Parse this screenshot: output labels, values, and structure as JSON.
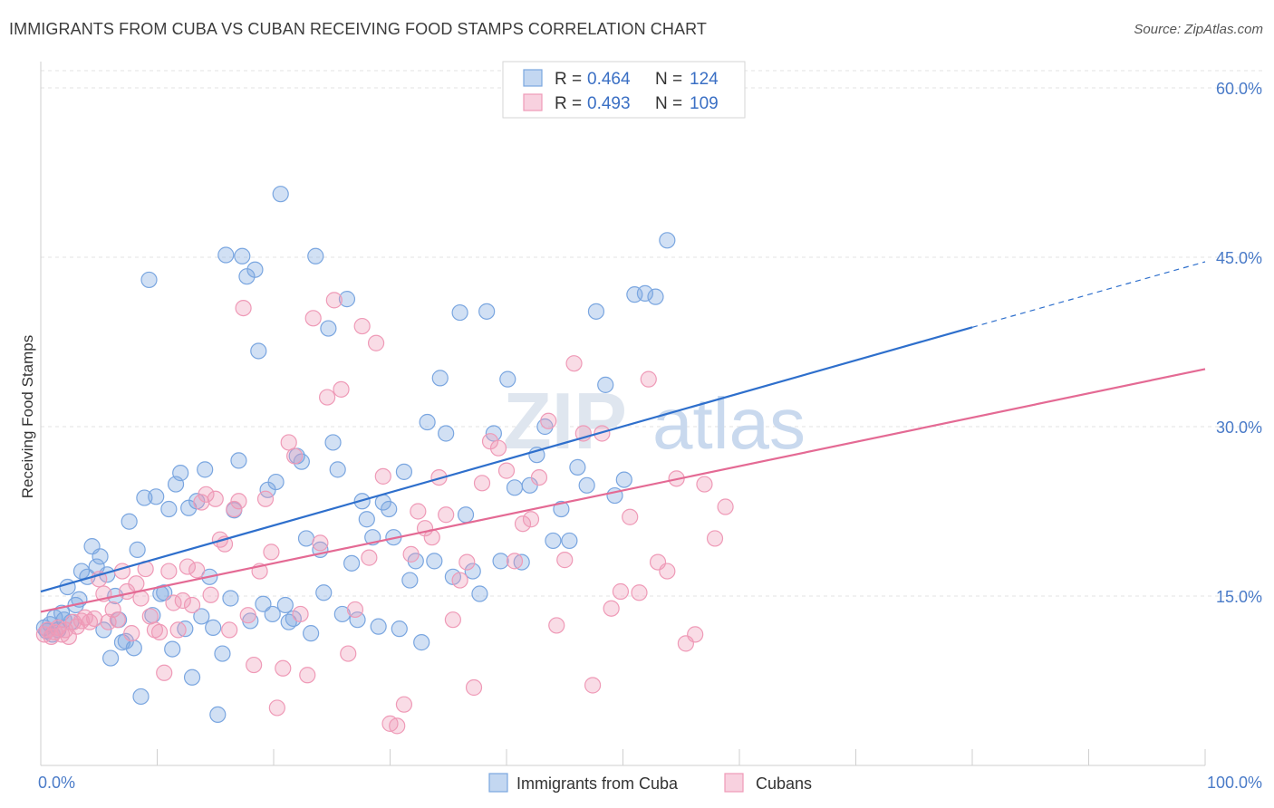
{
  "header": {
    "title": "IMMIGRANTS FROM CUBA VS CUBAN RECEIVING FOOD STAMPS CORRELATION CHART",
    "source_label": "Source:",
    "source_value": "ZipAtlas.com"
  },
  "watermark": {
    "zip": "ZIP",
    "atlas": "atlas"
  },
  "legend": {
    "r_label": "R =",
    "n_label": "N =",
    "entries": [
      {
        "r": "0.464",
        "n": "124",
        "color": "#7aa6e0"
      },
      {
        "r": "0.493",
        "n": "109",
        "color": "#ef9ab7"
      }
    ]
  },
  "chart_data": {
    "type": "scatter",
    "title": "IMMIGRANTS FROM CUBA VS CUBAN RECEIVING FOOD STAMPS CORRELATION CHART",
    "xlabel": "",
    "ylabel": "Receiving Food Stamps",
    "xlim": [
      0,
      100
    ],
    "ylim": [
      0,
      60
    ],
    "x_tick_labels": [
      "0.0%",
      "100.0%"
    ],
    "y_ticks": [
      15,
      30,
      45,
      60
    ],
    "y_tick_labels": [
      "15.0%",
      "30.0%",
      "45.0%",
      "60.0%"
    ],
    "grid": true,
    "legend_position": "top-center",
    "series": [
      {
        "name": "Immigrants from Cuba",
        "color": "#7aa6e0",
        "line_color": "#2e6fcc",
        "trend": {
          "x0": 0,
          "y0": 15.4,
          "x1": 80,
          "y1": 38.8,
          "dash_to_x": 100,
          "dash_to_y": 44.6
        },
        "points": [
          [
            0.3,
            12.2
          ],
          [
            0.5,
            11.9
          ],
          [
            0.8,
            12.5
          ],
          [
            1.0,
            11.6
          ],
          [
            1.2,
            13.1
          ],
          [
            1.5,
            12.0
          ],
          [
            1.8,
            13.5
          ],
          [
            2.0,
            12.9
          ],
          [
            2.3,
            15.8
          ],
          [
            2.6,
            12.7
          ],
          [
            3.0,
            14.2
          ],
          [
            3.3,
            14.7
          ],
          [
            3.5,
            17.2
          ],
          [
            4.0,
            16.7
          ],
          [
            4.4,
            19.4
          ],
          [
            4.8,
            17.6
          ],
          [
            5.1,
            18.5
          ],
          [
            5.4,
            12.0
          ],
          [
            5.7,
            16.9
          ],
          [
            6.0,
            9.5
          ],
          [
            6.4,
            15.0
          ],
          [
            6.7,
            12.9
          ],
          [
            7.0,
            10.9
          ],
          [
            7.3,
            11.0
          ],
          [
            7.6,
            21.6
          ],
          [
            8.0,
            10.4
          ],
          [
            8.3,
            19.1
          ],
          [
            8.6,
            6.1
          ],
          [
            8.9,
            23.7
          ],
          [
            9.3,
            43.0
          ],
          [
            9.6,
            13.3
          ],
          [
            9.9,
            23.8
          ],
          [
            10.3,
            15.2
          ],
          [
            10.6,
            15.3
          ],
          [
            11.0,
            22.7
          ],
          [
            11.3,
            10.3
          ],
          [
            11.6,
            24.9
          ],
          [
            12.0,
            25.9
          ],
          [
            12.4,
            12.1
          ],
          [
            12.7,
            22.8
          ],
          [
            13.0,
            7.8
          ],
          [
            13.4,
            23.4
          ],
          [
            13.8,
            13.2
          ],
          [
            14.1,
            26.2
          ],
          [
            14.5,
            16.7
          ],
          [
            14.8,
            12.2
          ],
          [
            15.2,
            4.5
          ],
          [
            15.6,
            9.9
          ],
          [
            15.9,
            45.2
          ],
          [
            16.3,
            14.8
          ],
          [
            16.6,
            22.6
          ],
          [
            17.0,
            27.0
          ],
          [
            17.3,
            45.1
          ],
          [
            17.7,
            43.3
          ],
          [
            18.0,
            12.8
          ],
          [
            18.4,
            43.9
          ],
          [
            18.7,
            36.7
          ],
          [
            19.1,
            14.3
          ],
          [
            19.5,
            24.4
          ],
          [
            19.9,
            13.4
          ],
          [
            20.2,
            25.1
          ],
          [
            20.6,
            50.6
          ],
          [
            21.0,
            14.2
          ],
          [
            21.3,
            12.7
          ],
          [
            21.7,
            13.0
          ],
          [
            22.0,
            27.4
          ],
          [
            22.4,
            26.9
          ],
          [
            22.8,
            20.1
          ],
          [
            23.2,
            11.7
          ],
          [
            23.6,
            45.1
          ],
          [
            24.0,
            19.1
          ],
          [
            24.3,
            15.3
          ],
          [
            24.7,
            38.7
          ],
          [
            25.1,
            28.6
          ],
          [
            25.5,
            26.2
          ],
          [
            25.9,
            13.4
          ],
          [
            26.3,
            41.3
          ],
          [
            26.7,
            17.9
          ],
          [
            27.2,
            12.9
          ],
          [
            27.6,
            23.4
          ],
          [
            28.0,
            21.8
          ],
          [
            28.5,
            20.2
          ],
          [
            29.0,
            12.3
          ],
          [
            29.4,
            23.3
          ],
          [
            29.9,
            22.7
          ],
          [
            30.3,
            20.2
          ],
          [
            30.8,
            12.1
          ],
          [
            31.2,
            26.0
          ],
          [
            31.7,
            16.4
          ],
          [
            32.2,
            18.1
          ],
          [
            32.7,
            10.9
          ],
          [
            33.2,
            30.4
          ],
          [
            33.8,
            18.1
          ],
          [
            34.3,
            34.3
          ],
          [
            34.8,
            29.4
          ],
          [
            35.4,
            16.7
          ],
          [
            36.0,
            40.1
          ],
          [
            36.5,
            22.2
          ],
          [
            37.1,
            17.2
          ],
          [
            37.7,
            15.2
          ],
          [
            38.3,
            40.2
          ],
          [
            38.9,
            29.4
          ],
          [
            39.5,
            18.1
          ],
          [
            40.1,
            34.2
          ],
          [
            40.7,
            24.6
          ],
          [
            41.3,
            18.0
          ],
          [
            42.0,
            24.8
          ],
          [
            42.6,
            27.5
          ],
          [
            43.3,
            30.0
          ],
          [
            44.0,
            19.9
          ],
          [
            44.7,
            22.7
          ],
          [
            45.4,
            19.9
          ],
          [
            46.1,
            26.4
          ],
          [
            46.9,
            24.8
          ],
          [
            47.7,
            40.2
          ],
          [
            48.5,
            33.7
          ],
          [
            49.3,
            23.9
          ],
          [
            50.1,
            25.3
          ],
          [
            51.0,
            41.7
          ],
          [
            51.9,
            41.8
          ],
          [
            52.8,
            41.5
          ],
          [
            53.8,
            46.5
          ]
        ]
      },
      {
        "name": "Cubans",
        "color": "#ef9ab7",
        "line_color": "#e46a94",
        "trend": {
          "x0": 0,
          "y0": 13.6,
          "x1": 100,
          "y1": 35.1
        },
        "points": [
          [
            0.3,
            11.6
          ],
          [
            0.6,
            12.0
          ],
          [
            0.9,
            11.4
          ],
          [
            1.2,
            11.8
          ],
          [
            1.5,
            12.2
          ],
          [
            1.8,
            11.6
          ],
          [
            2.1,
            12.0
          ],
          [
            2.4,
            11.4
          ],
          [
            2.8,
            12.7
          ],
          [
            3.1,
            12.3
          ],
          [
            3.5,
            12.8
          ],
          [
            3.8,
            13.1
          ],
          [
            4.2,
            12.7
          ],
          [
            4.6,
            13.0
          ],
          [
            5.0,
            16.5
          ],
          [
            5.4,
            15.2
          ],
          [
            5.8,
            12.7
          ],
          [
            6.2,
            13.8
          ],
          [
            6.6,
            12.9
          ],
          [
            7.0,
            17.2
          ],
          [
            7.4,
            15.4
          ],
          [
            7.8,
            11.7
          ],
          [
            8.2,
            16.1
          ],
          [
            8.6,
            14.8
          ],
          [
            9.0,
            17.4
          ],
          [
            9.4,
            13.2
          ],
          [
            9.8,
            12.0
          ],
          [
            10.2,
            11.8
          ],
          [
            10.6,
            8.2
          ],
          [
            11.0,
            17.2
          ],
          [
            11.4,
            14.4
          ],
          [
            11.8,
            12.0
          ],
          [
            12.2,
            14.6
          ],
          [
            12.6,
            17.6
          ],
          [
            13.0,
            14.2
          ],
          [
            13.4,
            17.3
          ],
          [
            13.8,
            23.3
          ],
          [
            14.2,
            24.0
          ],
          [
            14.6,
            15.1
          ],
          [
            15.0,
            23.6
          ],
          [
            15.4,
            20.0
          ],
          [
            15.8,
            19.6
          ],
          [
            16.2,
            12.0
          ],
          [
            16.6,
            22.7
          ],
          [
            17.0,
            23.4
          ],
          [
            17.4,
            40.5
          ],
          [
            17.8,
            13.3
          ],
          [
            18.3,
            8.9
          ],
          [
            18.8,
            17.2
          ],
          [
            19.3,
            23.6
          ],
          [
            19.8,
            18.9
          ],
          [
            20.3,
            5.1
          ],
          [
            20.8,
            8.6
          ],
          [
            21.3,
            28.6
          ],
          [
            21.8,
            27.4
          ],
          [
            22.3,
            13.4
          ],
          [
            22.9,
            8.0
          ],
          [
            23.4,
            39.6
          ],
          [
            24.0,
            19.7
          ],
          [
            24.6,
            32.6
          ],
          [
            25.2,
            41.2
          ],
          [
            25.8,
            33.3
          ],
          [
            26.4,
            9.9
          ],
          [
            27.0,
            13.8
          ],
          [
            27.6,
            38.9
          ],
          [
            28.2,
            18.4
          ],
          [
            28.8,
            37.4
          ],
          [
            29.4,
            25.6
          ],
          [
            30.0,
            3.7
          ],
          [
            30.6,
            3.5
          ],
          [
            31.2,
            5.4
          ],
          [
            31.8,
            18.7
          ],
          [
            32.4,
            22.5
          ],
          [
            33.0,
            21.0
          ],
          [
            33.6,
            20.2
          ],
          [
            34.2,
            25.5
          ],
          [
            34.8,
            22.2
          ],
          [
            35.4,
            12.9
          ],
          [
            36.0,
            16.4
          ],
          [
            36.6,
            18.0
          ],
          [
            37.2,
            6.9
          ],
          [
            37.9,
            25.0
          ],
          [
            38.6,
            28.7
          ],
          [
            39.3,
            28.1
          ],
          [
            40.0,
            26.1
          ],
          [
            40.7,
            18.1
          ],
          [
            41.4,
            21.4
          ],
          [
            42.1,
            21.8
          ],
          [
            42.8,
            25.5
          ],
          [
            43.6,
            30.5
          ],
          [
            44.3,
            12.4
          ],
          [
            45.0,
            18.2
          ],
          [
            45.8,
            35.6
          ],
          [
            46.6,
            29.4
          ],
          [
            47.4,
            7.1
          ],
          [
            48.2,
            29.4
          ],
          [
            49.0,
            13.9
          ],
          [
            49.8,
            15.4
          ],
          [
            50.6,
            22.0
          ],
          [
            51.4,
            15.3
          ],
          [
            52.2,
            34.2
          ],
          [
            53.0,
            18.0
          ],
          [
            53.8,
            17.2
          ],
          [
            54.6,
            25.4
          ],
          [
            55.4,
            10.8
          ],
          [
            56.2,
            11.6
          ],
          [
            57.0,
            24.9
          ],
          [
            57.9,
            20.1
          ],
          [
            58.8,
            22.9
          ]
        ]
      }
    ]
  },
  "bottom_legend": [
    {
      "label": "Immigrants from Cuba",
      "color": "#7aa6e0"
    },
    {
      "label": "Cubans",
      "color": "#ef9ab7"
    }
  ]
}
